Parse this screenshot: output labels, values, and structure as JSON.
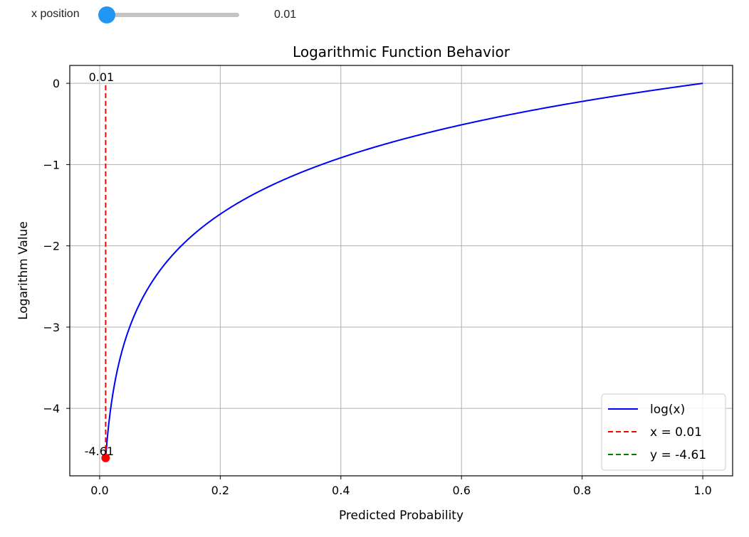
{
  "slider": {
    "label": "x position",
    "value_text": "0.01",
    "value": 0.01,
    "min": 0.01,
    "max": 1.0
  },
  "chart_data": {
    "type": "line",
    "title": "Logarithmic Function Behavior",
    "xlabel": "Predicted Probability",
    "ylabel": "Logarithm Value",
    "xlim": [
      -0.0495,
      1.0495
    ],
    "ylim": [
      -4.83,
      0.22
    ],
    "xticks": [
      0.0,
      0.2,
      0.4,
      0.6,
      0.8,
      1.0
    ],
    "xtick_labels": [
      "0.0",
      "0.2",
      "0.4",
      "0.6",
      "0.8",
      "1.0"
    ],
    "yticks": [
      0,
      -1,
      -2,
      -3,
      -4
    ],
    "ytick_labels": [
      "0",
      "−1",
      "−2",
      "−3",
      "−4"
    ],
    "grid": true,
    "legend_position": "lower-right",
    "series": [
      {
        "name": "log(x)",
        "function": "ln(x)",
        "x_range": [
          0.01,
          1.0
        ],
        "color": "#0000ff",
        "style": "solid"
      },
      {
        "name": "x = 0.01",
        "x": [
          0.01,
          0.01
        ],
        "y": [
          -4.61,
          0.0
        ],
        "color": "#ff0000",
        "style": "dashed"
      },
      {
        "name": "y = -4.61",
        "x": [
          0.01,
          0.01
        ],
        "y": [
          -4.61,
          -4.61
        ],
        "color": "#008000",
        "style": "dashed"
      }
    ],
    "marker": {
      "x": 0.01,
      "y": -4.61,
      "color": "#ff0000"
    },
    "annotations": [
      {
        "text": "0.01",
        "x": 0.01,
        "y": 0.0
      },
      {
        "text": "-4.61",
        "x": 0.01,
        "y": -4.61
      }
    ]
  }
}
